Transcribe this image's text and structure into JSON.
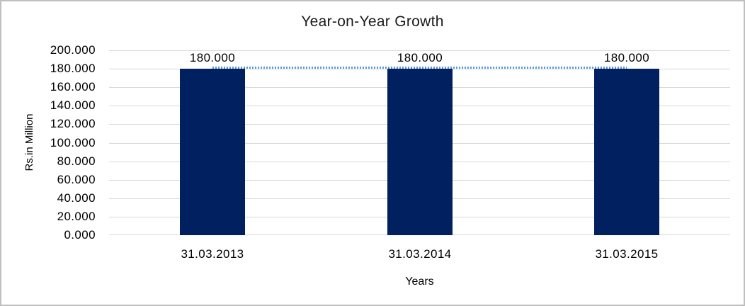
{
  "window": {
    "background": "#ffffff",
    "border_color": "#bfbfbf"
  },
  "chart_data": {
    "type": "bar",
    "title": "Year-on-Year Growth",
    "xlabel": "Years",
    "ylabel": "Rs.in Million",
    "categories": [
      "31.03.2013",
      "31.03.2014",
      "31.03.2015"
    ],
    "values": [
      180,
      180,
      180
    ],
    "data_labels": [
      "180.000",
      "180.000",
      "180.000"
    ],
    "bar_color": "#002060",
    "trendline": {
      "style": "dotted",
      "color": "#5b9bd5",
      "values": [
        180,
        180,
        180
      ]
    },
    "ylim": [
      0,
      200
    ],
    "ytick_step": 20,
    "yticks": [
      {
        "value": 200,
        "label": "200.000"
      },
      {
        "value": 180,
        "label": "180.000"
      },
      {
        "value": 160,
        "label": "160.000"
      },
      {
        "value": 140,
        "label": "140.000"
      },
      {
        "value": 120,
        "label": "120.000"
      },
      {
        "value": 100,
        "label": "100.000"
      },
      {
        "value": 80,
        "label": "80.000"
      },
      {
        "value": 60,
        "label": "60.000"
      },
      {
        "value": 40,
        "label": "40.000"
      },
      {
        "value": 20,
        "label": "20.000"
      },
      {
        "value": 0,
        "label": "0.000"
      }
    ],
    "grid": true,
    "gridline_color": "#d9d9d9",
    "legend": "none"
  }
}
